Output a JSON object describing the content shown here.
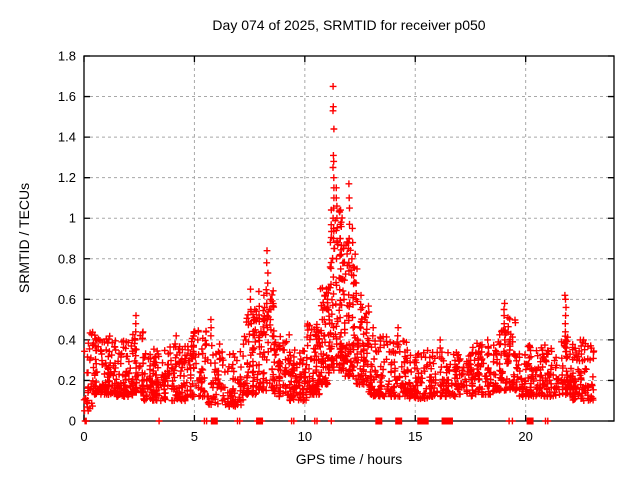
{
  "chart": {
    "title": "Day 074 of 2025, SRMTID for receiver p050",
    "xlabel": "GPS time / hours",
    "ylabel": "SRMTID / TECUs"
  },
  "chart_data": {
    "type": "scatter",
    "title": "Day 074 of 2025, SRMTID for receiver p050",
    "xlabel": "GPS time / hours",
    "ylabel": "SRMTID / TECUs",
    "series_name": "SRMTID",
    "xlim": [
      0,
      24
    ],
    "ylim": [
      0,
      1.8
    ],
    "xticks": [
      0,
      5,
      10,
      15,
      20
    ],
    "yticks": [
      0,
      0.2,
      0.4,
      0.6,
      0.8,
      1,
      1.2,
      1.4,
      1.6,
      1.8
    ],
    "grid": "dashed",
    "legend": "none",
    "marker": "plus",
    "marker_color": "#ff0000",
    "grid_color": "#a8a8a8",
    "border_color": "#000000",
    "n_points_approx": 2300,
    "x_data_end": 23.1,
    "seed": 20250374,
    "noise_segments": [
      [
        0.0,
        0.4,
        30,
        0.05,
        0.4
      ],
      [
        0.4,
        1.2,
        85,
        0.13,
        0.3
      ],
      [
        1.2,
        2.2,
        105,
        0.12,
        0.28
      ],
      [
        2.2,
        2.7,
        55,
        0.14,
        0.34
      ],
      [
        2.7,
        3.8,
        100,
        0.1,
        0.26
      ],
      [
        3.8,
        4.8,
        90,
        0.1,
        0.27
      ],
      [
        4.8,
        5.6,
        70,
        0.12,
        0.33
      ],
      [
        5.6,
        6.4,
        55,
        0.08,
        0.3
      ],
      [
        6.4,
        7.2,
        60,
        0.07,
        0.28
      ],
      [
        7.2,
        7.9,
        70,
        0.13,
        0.42
      ],
      [
        7.9,
        8.6,
        75,
        0.15,
        0.5
      ],
      [
        8.6,
        9.3,
        65,
        0.12,
        0.33
      ],
      [
        9.3,
        10.1,
        85,
        0.1,
        0.25
      ],
      [
        10.1,
        10.7,
        75,
        0.13,
        0.35
      ],
      [
        10.7,
        11.1,
        60,
        0.18,
        0.48
      ],
      [
        11.1,
        11.7,
        95,
        0.25,
        0.8
      ],
      [
        11.7,
        12.3,
        85,
        0.22,
        0.68
      ],
      [
        12.3,
        12.9,
        70,
        0.18,
        0.45
      ],
      [
        12.9,
        13.8,
        80,
        0.12,
        0.3
      ],
      [
        13.8,
        14.6,
        70,
        0.12,
        0.28
      ],
      [
        14.6,
        15.6,
        80,
        0.11,
        0.24
      ],
      [
        15.6,
        16.6,
        75,
        0.12,
        0.22
      ],
      [
        16.6,
        17.6,
        80,
        0.12,
        0.22
      ],
      [
        17.6,
        18.6,
        80,
        0.13,
        0.26
      ],
      [
        18.6,
        19.2,
        55,
        0.15,
        0.3
      ],
      [
        19.2,
        19.7,
        50,
        0.15,
        0.36
      ],
      [
        19.7,
        20.6,
        75,
        0.12,
        0.26
      ],
      [
        20.6,
        21.5,
        75,
        0.12,
        0.26
      ],
      [
        21.5,
        22.1,
        55,
        0.13,
        0.3
      ],
      [
        22.1,
        23.1,
        85,
        0.1,
        0.3
      ]
    ],
    "peak_columns": [
      {
        "x": 2.35,
        "ys": [
          0.44,
          0.48,
          0.52
        ]
      },
      {
        "x": 4.15,
        "ys": [
          0.38,
          0.42
        ]
      },
      {
        "x": 5.15,
        "ys": [
          0.4,
          0.44
        ]
      },
      {
        "x": 5.75,
        "ys": [
          0.42,
          0.46,
          0.5
        ]
      },
      {
        "x": 7.55,
        "ys": [
          0.48,
          0.54,
          0.6,
          0.65
        ]
      },
      {
        "x": 7.75,
        "ys": [
          0.45,
          0.5,
          0.55
        ]
      },
      {
        "x": 8.15,
        "ys": [
          0.5,
          0.56,
          0.62
        ]
      },
      {
        "x": 8.3,
        "ys": [
          0.46,
          0.52,
          0.58,
          0.63,
          0.68,
          0.73,
          0.78,
          0.84
        ]
      },
      {
        "x": 8.45,
        "ys": [
          0.45,
          0.5,
          0.55,
          0.6
        ]
      },
      {
        "x": 10.9,
        "ys": [
          0.5,
          0.56,
          0.62
        ]
      },
      {
        "x": 11.05,
        "ys": [
          0.55,
          0.6
        ]
      },
      {
        "x": 11.3,
        "ys": [
          0.85,
          0.9,
          0.95,
          1.0,
          1.05,
          1.1,
          1.15,
          1.2,
          1.25,
          1.28,
          1.31,
          1.44,
          1.53,
          1.55,
          1.65
        ]
      },
      {
        "x": 11.45,
        "ys": [
          0.8,
          0.88,
          0.94,
          1.0,
          1.06,
          1.1,
          1.15
        ]
      },
      {
        "x": 11.6,
        "ys": [
          0.75,
          0.82,
          0.9,
          0.97,
          1.03
        ]
      },
      {
        "x": 11.75,
        "ys": [
          0.7,
          0.78,
          0.85
        ]
      },
      {
        "x": 12.0,
        "ys": [
          0.78,
          0.85,
          0.9,
          0.97,
          1.05,
          1.1,
          1.17
        ]
      },
      {
        "x": 12.15,
        "ys": [
          0.72,
          0.8,
          0.88,
          0.95
        ]
      },
      {
        "x": 12.35,
        "ys": [
          0.6,
          0.68,
          0.75
        ]
      },
      {
        "x": 12.55,
        "ys": [
          0.55,
          0.62
        ]
      },
      {
        "x": 13.1,
        "ys": [
          0.42,
          0.46
        ]
      },
      {
        "x": 14.2,
        "ys": [
          0.38,
          0.42,
          0.46
        ]
      },
      {
        "x": 16.1,
        "ys": [
          0.36,
          0.4
        ]
      },
      {
        "x": 18.3,
        "ys": [
          0.36,
          0.4
        ]
      },
      {
        "x": 19.05,
        "ys": [
          0.4,
          0.44,
          0.48,
          0.52,
          0.55,
          0.58
        ]
      },
      {
        "x": 19.3,
        "ys": [
          0.35,
          0.38
        ]
      },
      {
        "x": 21.8,
        "ys": [
          0.4,
          0.44,
          0.48,
          0.52,
          0.56,
          0.6,
          0.62
        ]
      },
      {
        "x": 22.5,
        "ys": [
          0.33,
          0.37,
          0.4
        ]
      }
    ],
    "zero_value_plus_x": [
      0.05,
      0.1,
      3.4,
      5.45,
      5.55,
      6.95,
      7.05,
      7.85,
      8.05,
      9.4,
      9.5,
      10.45,
      10.55,
      11.2,
      19.25,
      19.4,
      20.9,
      21.0
    ],
    "zero_value_square_x": [
      5.9,
      7.95,
      13.35,
      14.25,
      15.25,
      15.45,
      16.35,
      16.55,
      20.2
    ]
  }
}
